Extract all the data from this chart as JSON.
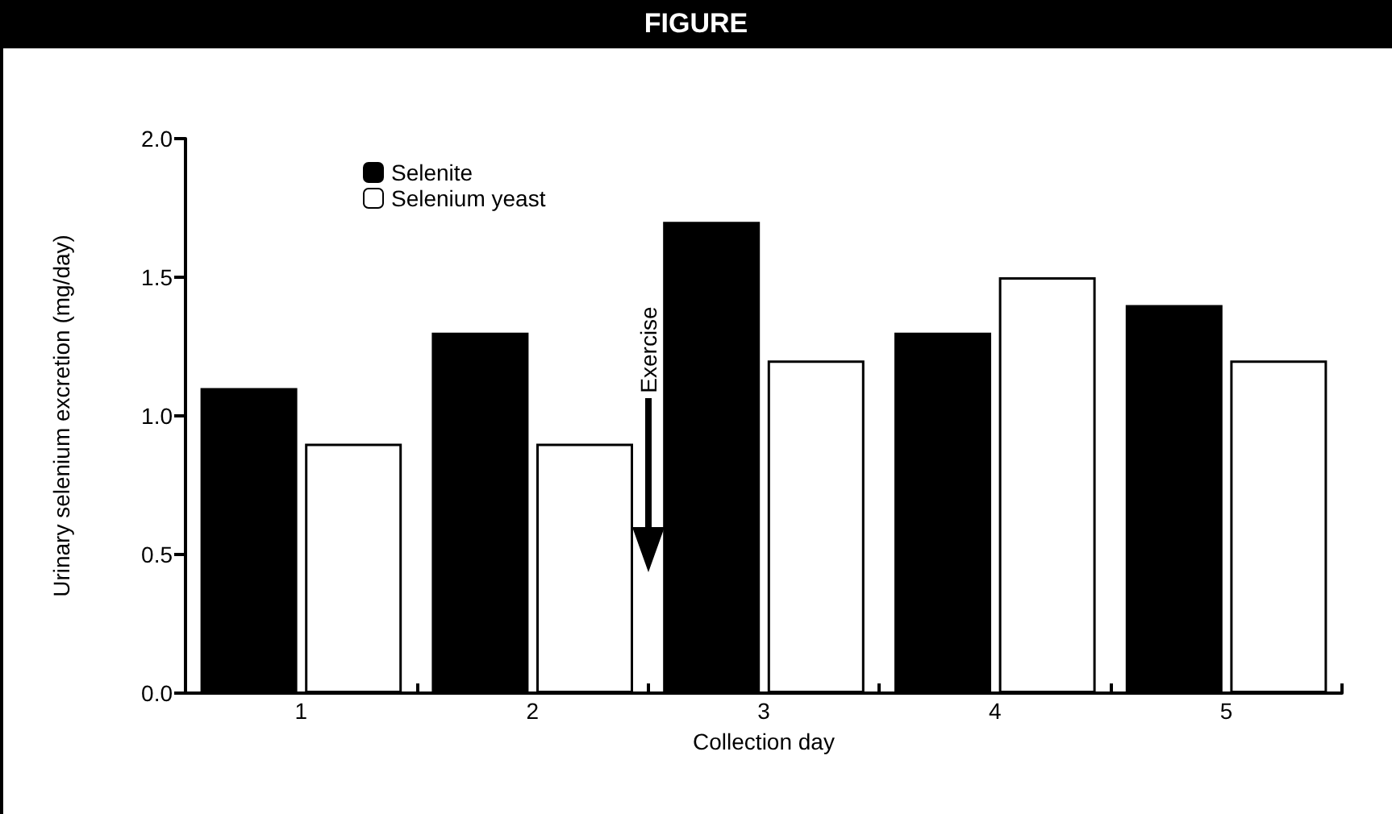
{
  "chart_data": {
    "type": "bar",
    "title": "FIGURE",
    "xlabel": "Collection day",
    "ylabel": "Urinary selenium excretion (mg/day)",
    "categories": [
      "1",
      "2",
      "3",
      "4",
      "5"
    ],
    "series": [
      {
        "name": "Selenite",
        "color": "#000000",
        "values": [
          1.1,
          1.3,
          1.7,
          1.3,
          1.4
        ]
      },
      {
        "name": "Selenium yeast",
        "color": "#ffffff",
        "values": [
          0.9,
          0.9,
          1.2,
          1.5,
          1.2
        ]
      }
    ],
    "ylim": [
      0,
      2
    ],
    "yticks": [
      {
        "value": 0,
        "label": "0.0"
      },
      {
        "value": 0.5,
        "label": "0.5"
      },
      {
        "value": 1,
        "label": "1.0"
      },
      {
        "value": 1.5,
        "label": "1.5"
      },
      {
        "value": 2,
        "label": "2.0"
      }
    ],
    "annotations": [
      "Exercise"
    ],
    "grid": false,
    "legend": "top left"
  }
}
